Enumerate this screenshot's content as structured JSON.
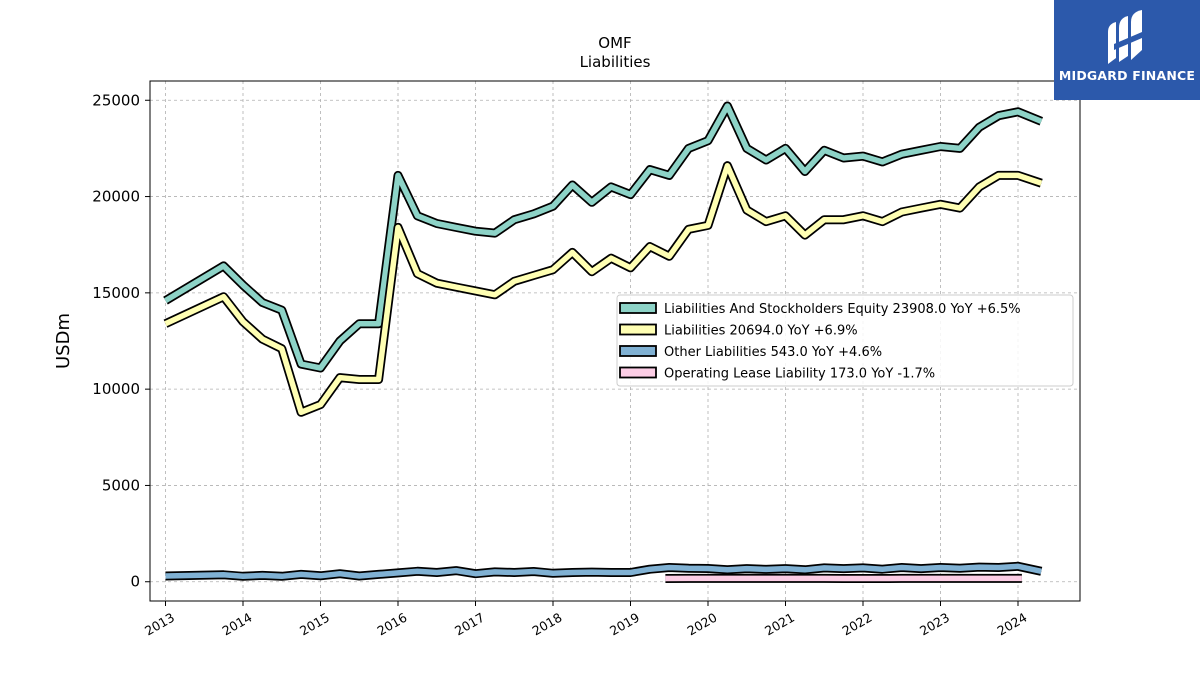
{
  "header": {
    "ticker": "OMF",
    "subtitle": "Liabilities"
  },
  "brand": {
    "name": "MIDGARD FINANCE",
    "color": "#2c59ab",
    "icon": "mf-monogram-icon"
  },
  "chart_data": {
    "type": "line",
    "title": "OMF",
    "subtitle": "Liabilities",
    "ylabel": "USDm",
    "xlabel": "",
    "ylim": [
      -1000,
      26000
    ],
    "xlim": [
      2012.8,
      2024.8
    ],
    "yticks": [
      0,
      5000,
      10000,
      15000,
      20000,
      25000
    ],
    "xticks": [
      "2013",
      "2014",
      "2015",
      "2016",
      "2017",
      "2018",
      "2019",
      "2020",
      "2021",
      "2022",
      "2023",
      "2024"
    ],
    "grid": true,
    "legend_position": "center-right",
    "series": [
      {
        "name": "Liabilities And Stockholders Equity",
        "legend": "Liabilities And Stockholders Equity  23908.0 YoY +6.5%",
        "color": "#8dd3c7",
        "x": [
          2013.0,
          2013.75,
          2014.0,
          2014.25,
          2014.5,
          2014.75,
          2015.0,
          2015.25,
          2015.5,
          2015.75,
          2016.0,
          2016.25,
          2016.5,
          2016.75,
          2017.0,
          2017.25,
          2017.5,
          2017.75,
          2018.0,
          2018.25,
          2018.5,
          2018.75,
          2019.0,
          2019.25,
          2019.5,
          2019.75,
          2020.0,
          2020.25,
          2020.5,
          2020.75,
          2021.0,
          2021.25,
          2021.5,
          2021.75,
          2022.0,
          2022.25,
          2022.5,
          2022.75,
          2023.0,
          2023.25,
          2023.5,
          2023.75,
          2024.0,
          2024.3
        ],
        "y": [
          14600,
          16400,
          15400,
          14500,
          14100,
          11300,
          11100,
          12500,
          13400,
          13400,
          21100,
          19000,
          18600,
          18400,
          18200,
          18100,
          18800,
          19100,
          19500,
          20600,
          19700,
          20500,
          20100,
          21400,
          21100,
          22500,
          22900,
          24700,
          22500,
          21900,
          22500,
          21300,
          22400,
          22000,
          22100,
          21800,
          22200,
          22400,
          22600,
          22500,
          23600,
          24200,
          24400,
          23908
        ]
      },
      {
        "name": "Liabilities",
        "legend": "Liabilities  20694.0 YoY +6.9%",
        "color": "#ffffb3",
        "x": [
          2013.0,
          2013.75,
          2014.0,
          2014.25,
          2014.5,
          2014.75,
          2015.0,
          2015.25,
          2015.5,
          2015.75,
          2016.0,
          2016.25,
          2016.5,
          2016.75,
          2017.0,
          2017.25,
          2017.5,
          2017.75,
          2018.0,
          2018.25,
          2018.5,
          2018.75,
          2019.0,
          2019.25,
          2019.5,
          2019.75,
          2020.0,
          2020.25,
          2020.5,
          2020.75,
          2021.0,
          2021.25,
          2021.5,
          2021.75,
          2022.0,
          2022.25,
          2022.5,
          2022.75,
          2023.0,
          2023.25,
          2023.5,
          2023.75,
          2024.0,
          2024.3
        ],
        "y": [
          13400,
          14800,
          13500,
          12600,
          12100,
          8800,
          9200,
          10600,
          10500,
          10500,
          18400,
          16000,
          15500,
          15300,
          15100,
          14900,
          15600,
          15900,
          16200,
          17100,
          16100,
          16800,
          16300,
          17400,
          16900,
          18300,
          18500,
          21600,
          19300,
          18700,
          19000,
          18000,
          18800,
          18800,
          19000,
          18700,
          19200,
          19400,
          19600,
          19400,
          20500,
          21100,
          21100,
          20694
        ]
      },
      {
        "name": "Other Liabilities",
        "legend": "Other Liabilities  543.0 YoY +4.6%",
        "color": "#80b1d3",
        "x": [
          2013.0,
          2013.75,
          2014.0,
          2014.25,
          2014.5,
          2014.75,
          2015.0,
          2015.25,
          2015.5,
          2015.75,
          2016.0,
          2016.25,
          2016.5,
          2016.75,
          2017.0,
          2017.25,
          2017.5,
          2017.75,
          2018.0,
          2018.25,
          2018.5,
          2018.75,
          2019.0,
          2019.25,
          2019.5,
          2019.75,
          2020.0,
          2020.25,
          2020.5,
          2020.75,
          2021.0,
          2021.25,
          2021.5,
          2021.75,
          2022.0,
          2022.25,
          2022.5,
          2022.75,
          2023.0,
          2023.25,
          2023.5,
          2023.75,
          2024.0,
          2024.3
        ],
        "y": [
          300,
          360,
          280,
          330,
          280,
          380,
          310,
          420,
          300,
          380,
          460,
          540,
          480,
          580,
          420,
          510,
          480,
          530,
          440,
          480,
          500,
          480,
          480,
          650,
          740,
          700,
          690,
          620,
          680,
          640,
          680,
          620,
          720,
          680,
          720,
          650,
          740,
          680,
          740,
          700,
          760,
          740,
          800,
          543
        ]
      },
      {
        "name": "Operating Lease Liability",
        "legend": "Operating Lease Liability  173.0 YoY -1.7%",
        "color": "#fccde5",
        "x": [
          2019.45,
          2019.75,
          2020.0,
          2020.25,
          2020.5,
          2020.75,
          2021.0,
          2021.25,
          2021.5,
          2021.75,
          2022.0,
          2022.25,
          2022.5,
          2022.75,
          2023.0,
          2023.25,
          2023.5,
          2023.75,
          2024.05
        ],
        "y": [
          170,
          172,
          175,
          176,
          175,
          174,
          173,
          172,
          171,
          170,
          170,
          170,
          171,
          172,
          173,
          174,
          175,
          176,
          173
        ]
      }
    ]
  }
}
